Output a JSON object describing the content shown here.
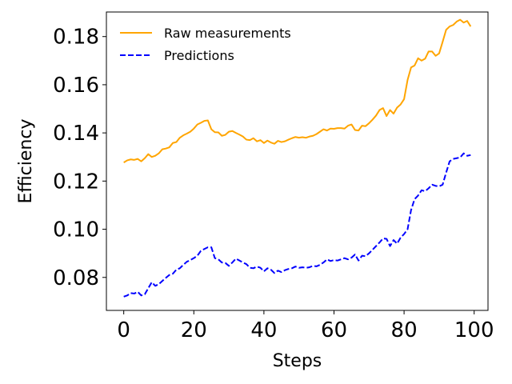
{
  "chart_data": {
    "type": "line",
    "title": "",
    "xlabel": "Steps",
    "ylabel": "Efficiency",
    "xlim": [
      -4.95,
      103.95
    ],
    "ylim": [
      0.0663,
      0.1902
    ],
    "xticks": [
      0,
      20,
      40,
      60,
      80,
      100
    ],
    "yticks": [
      0.08,
      0.1,
      0.12,
      0.14,
      0.16,
      0.18
    ],
    "ytick_labels": [
      "0.08",
      "0.10",
      "0.12",
      "0.14",
      "0.16",
      "0.18"
    ],
    "grid": false,
    "legend_position": "top-left",
    "x": [
      0,
      1,
      2,
      3,
      4,
      5,
      6,
      7,
      8,
      9,
      10,
      11,
      12,
      13,
      14,
      15,
      16,
      17,
      18,
      19,
      20,
      21,
      22,
      23,
      24,
      25,
      26,
      27,
      28,
      29,
      30,
      31,
      32,
      33,
      34,
      35,
      36,
      37,
      38,
      39,
      40,
      41,
      42,
      43,
      44,
      45,
      46,
      47,
      48,
      49,
      50,
      51,
      52,
      53,
      54,
      55,
      56,
      57,
      58,
      59,
      60,
      61,
      62,
      63,
      64,
      65,
      66,
      67,
      68,
      69,
      70,
      71,
      72,
      73,
      74,
      75,
      76,
      77,
      78,
      79,
      80,
      81,
      82,
      83,
      84,
      85,
      86,
      87,
      88,
      89,
      90,
      91,
      92,
      93,
      94,
      95,
      96,
      97,
      98,
      99
    ],
    "series": [
      {
        "name": "Raw measurements",
        "color": "#FFA500",
        "style": "solid",
        "values": [
          0.1277,
          0.1286,
          0.129,
          0.1288,
          0.1292,
          0.1282,
          0.1295,
          0.1312,
          0.13,
          0.1305,
          0.1315,
          0.1332,
          0.1335,
          0.134,
          0.1358,
          0.1362,
          0.138,
          0.139,
          0.1397,
          0.1405,
          0.1418,
          0.1435,
          0.1442,
          0.145,
          0.1452,
          0.1415,
          0.1403,
          0.1402,
          0.1388,
          0.1392,
          0.1405,
          0.1408,
          0.14,
          0.1393,
          0.1385,
          0.1372,
          0.137,
          0.1378,
          0.1365,
          0.137,
          0.1358,
          0.1368,
          0.136,
          0.1355,
          0.1367,
          0.1362,
          0.1365,
          0.1372,
          0.1378,
          0.1383,
          0.138,
          0.1382,
          0.138,
          0.1385,
          0.1388,
          0.1395,
          0.1405,
          0.1415,
          0.141,
          0.1418,
          0.1417,
          0.142,
          0.142,
          0.1418,
          0.143,
          0.1435,
          0.1412,
          0.141,
          0.143,
          0.1428,
          0.144,
          0.1455,
          0.1472,
          0.1495,
          0.1503,
          0.147,
          0.1495,
          0.148,
          0.1505,
          0.1518,
          0.154,
          0.162,
          0.1672,
          0.168,
          0.171,
          0.17,
          0.1708,
          0.1738,
          0.1738,
          0.172,
          0.173,
          0.1778,
          0.1828,
          0.1842,
          0.1848,
          0.1862,
          0.187,
          0.1858,
          0.1865,
          0.1842
        ]
      },
      {
        "name": "Predictions",
        "color": "#0000FF",
        "style": "dashed",
        "values": [
          0.072,
          0.0725,
          0.0735,
          0.0733,
          0.074,
          0.0725,
          0.073,
          0.0755,
          0.078,
          0.0765,
          0.0772,
          0.0785,
          0.0798,
          0.081,
          0.0815,
          0.0832,
          0.0838,
          0.0852,
          0.0865,
          0.0872,
          0.088,
          0.089,
          0.091,
          0.0918,
          0.0925,
          0.0925,
          0.088,
          0.0875,
          0.0862,
          0.086,
          0.0848,
          0.0862,
          0.0878,
          0.087,
          0.0862,
          0.0855,
          0.084,
          0.0838,
          0.0845,
          0.084,
          0.0825,
          0.0838,
          0.0832,
          0.0818,
          0.0828,
          0.0822,
          0.083,
          0.0835,
          0.0838,
          0.0845,
          0.084,
          0.0842,
          0.084,
          0.0842,
          0.0848,
          0.0846,
          0.0852,
          0.0862,
          0.0875,
          0.0868,
          0.0872,
          0.087,
          0.0875,
          0.088,
          0.0875,
          0.0882,
          0.0895,
          0.087,
          0.089,
          0.0888,
          0.09,
          0.0915,
          0.093,
          0.0945,
          0.0962,
          0.096,
          0.093,
          0.0955,
          0.094,
          0.0965,
          0.098,
          0.1,
          0.108,
          0.1125,
          0.114,
          0.1162,
          0.1158,
          0.117,
          0.1185,
          0.118,
          0.1178,
          0.1185,
          0.1235,
          0.1282,
          0.1292,
          0.1295,
          0.1298,
          0.1315,
          0.1305,
          0.1308
        ]
      }
    ]
  }
}
